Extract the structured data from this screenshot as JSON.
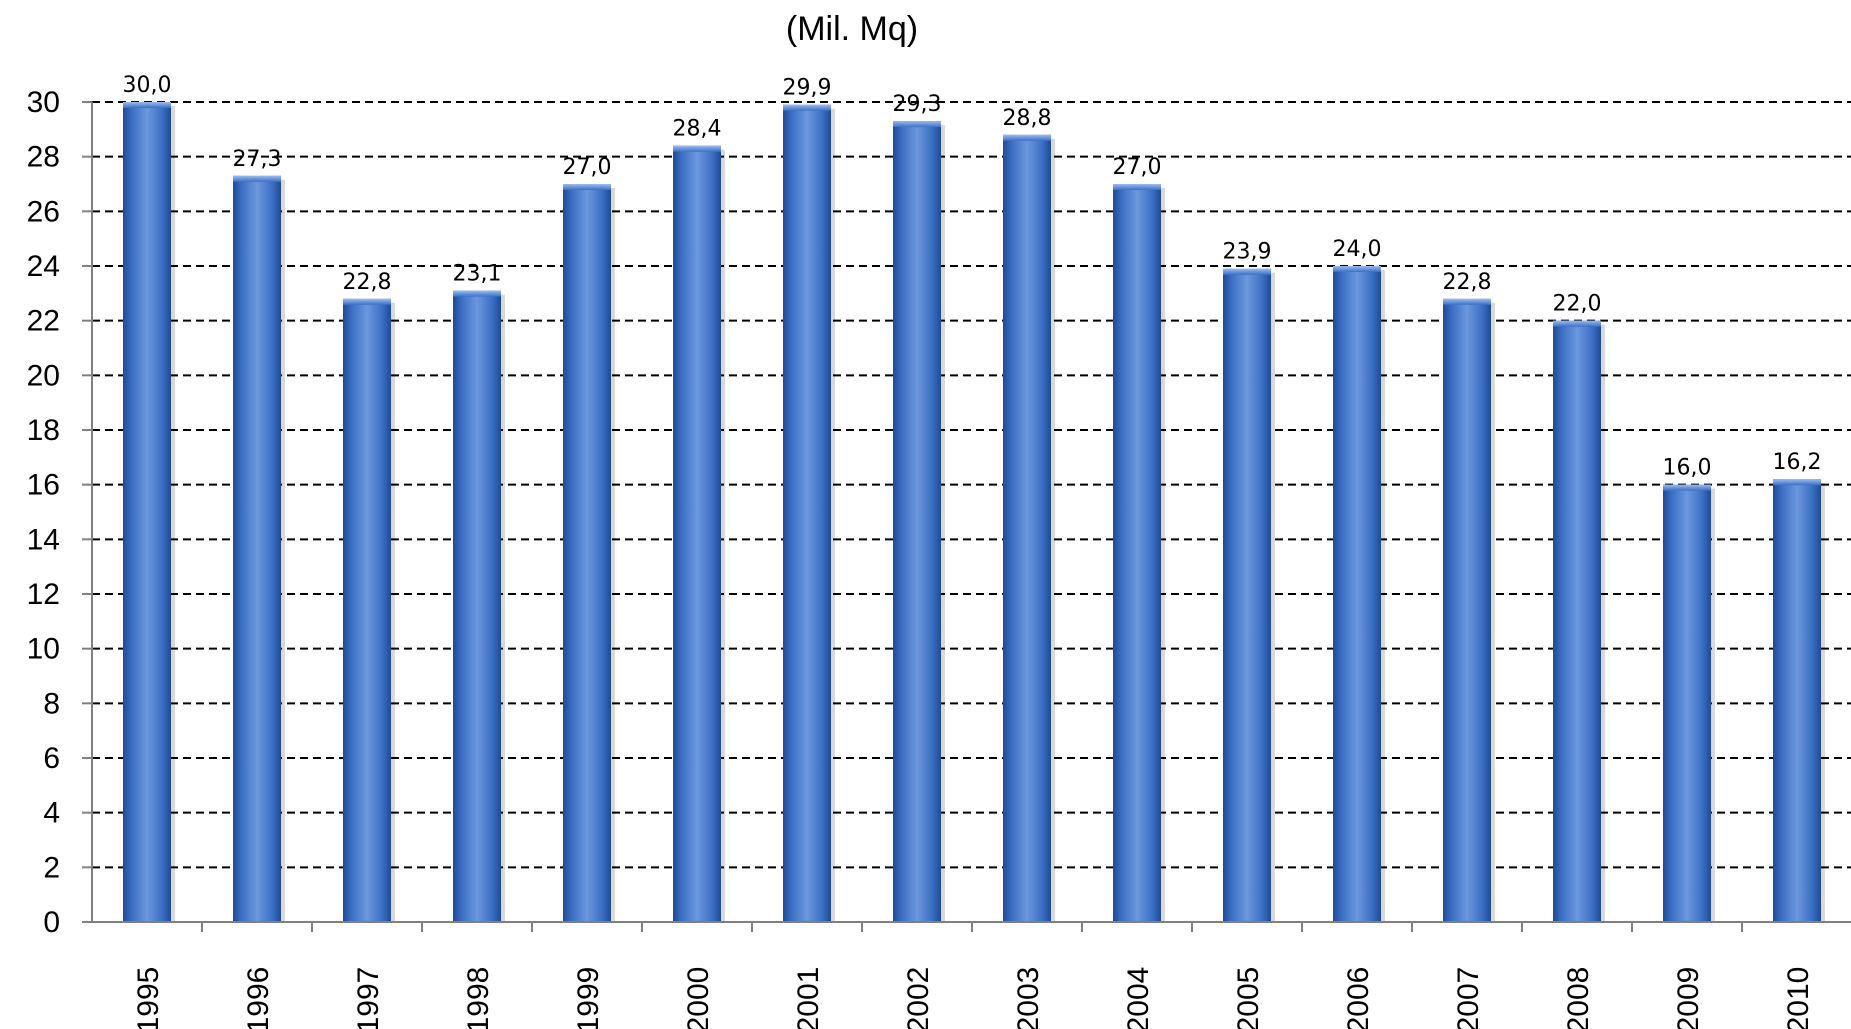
{
  "chart_data": {
    "type": "bar",
    "subtitle": "(Mil. Mq)",
    "categories": [
      "1995",
      "1996",
      "1997",
      "1998",
      "1999",
      "2000",
      "2001",
      "2002",
      "2003",
      "2004",
      "2005",
      "2006",
      "2007",
      "2008",
      "2009",
      "2010"
    ],
    "values": [
      30.0,
      27.3,
      22.8,
      23.1,
      27.0,
      28.4,
      29.9,
      29.3,
      28.8,
      27.0,
      23.9,
      24.0,
      22.8,
      22.0,
      16.0,
      16.2
    ],
    "data_labels": [
      "30,0",
      "27,3",
      "22,8",
      "23,1",
      "27,0",
      "28,4",
      "29,9",
      "29,3",
      "28,8",
      "27,0",
      "23,9",
      "24,0",
      "22,8",
      "22,0",
      "16,0",
      "16,2"
    ],
    "y_ticks": [
      "0",
      "2",
      "4",
      "6",
      "8",
      "10",
      "12",
      "14",
      "16",
      "18",
      "20",
      "22",
      "24",
      "26",
      "28",
      "30"
    ],
    "ylim": [
      0,
      30
    ],
    "grid": "dashed horizontal",
    "bar_color": "#3b6fc4",
    "bar_color_dark": "#1f4a94",
    "bar_color_light": "#6c97dd"
  }
}
